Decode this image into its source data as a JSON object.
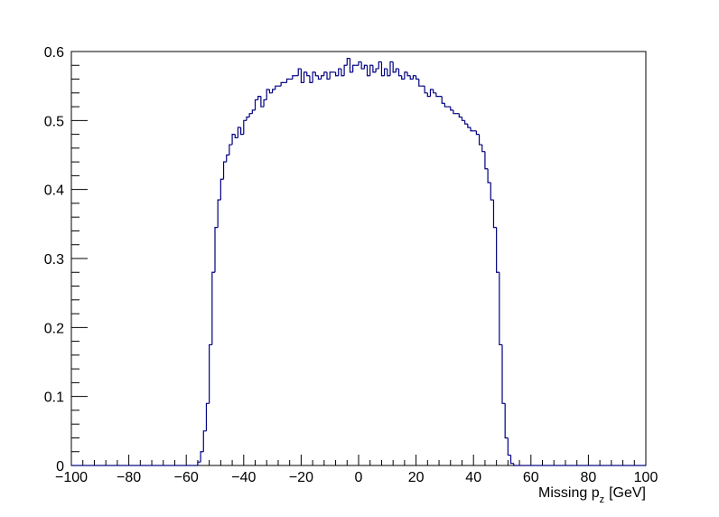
{
  "chart_data": {
    "type": "histogram",
    "xlabel": "Missing p",
    "xlabel_sub": "z",
    "xlabel_unit": "[GeV]",
    "color": "#000080",
    "xlim": [
      -100,
      100
    ],
    "ylim": [
      0,
      0.6
    ],
    "xticks": [
      {
        "value": -100,
        "label": "−100"
      },
      {
        "value": -80,
        "label": "−80"
      },
      {
        "value": -60,
        "label": "−60"
      },
      {
        "value": -40,
        "label": "−40"
      },
      {
        "value": -20,
        "label": "−20"
      },
      0,
      20,
      40,
      60,
      80,
      100
    ],
    "yticks": [
      0,
      0.1,
      0.2,
      0.3,
      0.4,
      0.5,
      0.6
    ],
    "bins": [
      -100,
      -99,
      -98,
      -97,
      -96,
      -95,
      -94,
      -93,
      -92,
      -91,
      -90,
      -89,
      -88,
      -87,
      -86,
      -85,
      -84,
      -83,
      -82,
      -81,
      -80,
      -79,
      -78,
      -77,
      -76,
      -75,
      -74,
      -73,
      -72,
      -71,
      -70,
      -69,
      -68,
      -67,
      -66,
      -65,
      -64,
      -63,
      -62,
      -61,
      -60,
      -59,
      -58,
      -57,
      -56,
      -55,
      -54,
      -53,
      -52,
      -51,
      -50,
      -49,
      -48,
      -47,
      -46,
      -45,
      -44,
      -43,
      -42,
      -41,
      -40,
      -39,
      -38,
      -37,
      -36,
      -35,
      -34,
      -33,
      -32,
      -31,
      -30,
      -29,
      -28,
      -27,
      -26,
      -25,
      -24,
      -23,
      -22,
      -21,
      -20,
      -19,
      -18,
      -17,
      -16,
      -15,
      -14,
      -13,
      -12,
      -11,
      -10,
      -9,
      -8,
      -7,
      -6,
      -5,
      -4,
      -3,
      -2,
      -1,
      0,
      1,
      2,
      3,
      4,
      5,
      6,
      7,
      8,
      9,
      10,
      11,
      12,
      13,
      14,
      15,
      16,
      17,
      18,
      19,
      20,
      21,
      22,
      23,
      24,
      25,
      26,
      27,
      28,
      29,
      30,
      31,
      32,
      33,
      34,
      35,
      36,
      37,
      38,
      39,
      40,
      41,
      42,
      43,
      44,
      45,
      46,
      47,
      48,
      49,
      50,
      51,
      52,
      53,
      54,
      55,
      56,
      57,
      58,
      59,
      60,
      61,
      62,
      63,
      64,
      65,
      66,
      67,
      68,
      69,
      70,
      71,
      72,
      73,
      74,
      75,
      76,
      77,
      78,
      79,
      80,
      81,
      82,
      83,
      84,
      85,
      86,
      87,
      88,
      89,
      90,
      91,
      92,
      93,
      94,
      95,
      96,
      97,
      98,
      99,
      100
    ],
    "values": [
      0,
      0,
      0,
      0,
      0,
      0,
      0,
      0,
      0,
      0,
      0,
      0,
      0,
      0,
      0,
      0,
      0,
      0,
      0,
      0,
      0,
      0,
      0,
      0,
      0,
      0,
      0,
      0,
      0,
      0,
      0,
      0,
      0,
      0,
      0,
      0,
      0,
      0,
      0,
      0,
      0,
      0,
      0,
      0,
      0.005,
      0.02,
      0.05,
      0.09,
      0.175,
      0.28,
      0.345,
      0.385,
      0.415,
      0.44,
      0.45,
      0.465,
      0.48,
      0.475,
      0.49,
      0.48,
      0.5,
      0.505,
      0.51,
      0.515,
      0.53,
      0.535,
      0.52,
      0.53,
      0.545,
      0.54,
      0.545,
      0.55,
      0.55,
      0.555,
      0.555,
      0.56,
      0.56,
      0.565,
      0.565,
      0.575,
      0.555,
      0.57,
      0.565,
      0.555,
      0.57,
      0.565,
      0.56,
      0.565,
      0.57,
      0.56,
      0.57,
      0.57,
      0.565,
      0.575,
      0.565,
      0.58,
      0.59,
      0.57,
      0.58,
      0.58,
      0.585,
      0.575,
      0.58,
      0.565,
      0.58,
      0.57,
      0.575,
      0.585,
      0.565,
      0.575,
      0.565,
      0.585,
      0.57,
      0.575,
      0.565,
      0.56,
      0.57,
      0.565,
      0.56,
      0.565,
      0.56,
      0.55,
      0.55,
      0.54,
      0.535,
      0.545,
      0.54,
      0.535,
      0.535,
      0.525,
      0.52,
      0.52,
      0.515,
      0.51,
      0.51,
      0.505,
      0.5,
      0.495,
      0.49,
      0.485,
      0.485,
      0.48,
      0.465,
      0.455,
      0.43,
      0.41,
      0.385,
      0.345,
      0.28,
      0.175,
      0.09,
      0.04,
      0.015,
      0.003,
      0,
      0,
      0,
      0,
      0,
      0,
      0,
      0,
      0,
      0,
      0,
      0,
      0,
      0,
      0,
      0,
      0,
      0,
      0,
      0,
      0,
      0,
      0,
      0,
      0,
      0,
      0,
      0,
      0,
      0,
      0,
      0,
      0,
      0,
      0,
      0,
      0,
      0,
      0,
      0,
      0,
      0,
      0,
      0,
      0,
      0
    ]
  }
}
